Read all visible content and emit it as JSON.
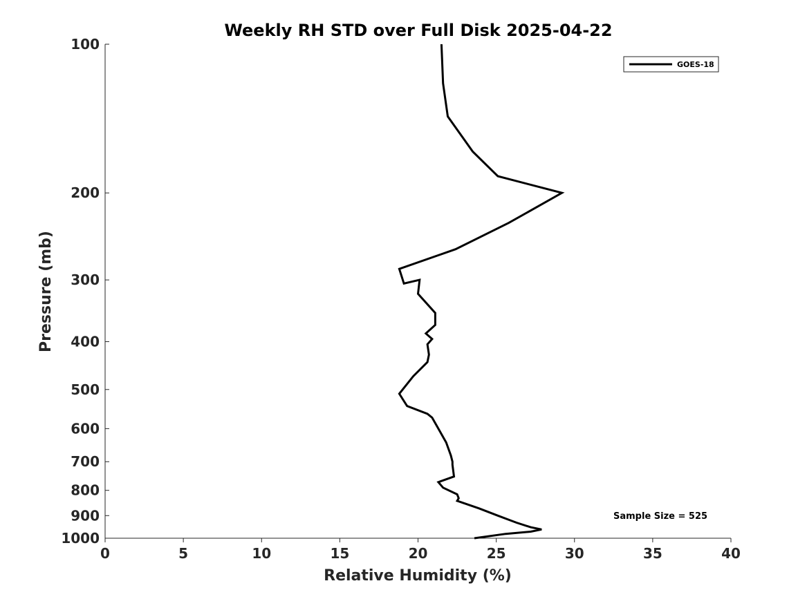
{
  "chart_data": {
    "type": "line",
    "title": "Weekly RH STD over Full Disk 2025-04-22",
    "xlabel": "Relative Humidity (%)",
    "ylabel": "Pressure (mb)",
    "xlim": [
      0,
      40
    ],
    "ylim": [
      100,
      1000
    ],
    "yscale": "log",
    "y_reversed": true,
    "grid": false,
    "xticks": [
      0,
      5,
      10,
      15,
      20,
      25,
      30,
      35,
      40
    ],
    "xtick_labels": [
      "0",
      "5",
      "10",
      "15",
      "20",
      "25",
      "30",
      "35",
      "40"
    ],
    "yticks": [
      100,
      200,
      300,
      400,
      500,
      600,
      700,
      800,
      900,
      1000
    ],
    "ytick_labels": [
      "100",
      "200",
      "300",
      "400",
      "500",
      "600",
      "700",
      "800",
      "900",
      "1000"
    ],
    "legend_position": "top-right",
    "series": [
      {
        "name": "GOES-18",
        "color": "#000000",
        "x": [
          21.5,
          21.6,
          21.9,
          23.5,
          25.1,
          29.2,
          25.8,
          22.4,
          18.8,
          19.1,
          20.1,
          20.0,
          21.1,
          21.1,
          20.5,
          20.9,
          20.6,
          20.7,
          20.6,
          19.7,
          18.8,
          19.3,
          20.6,
          20.9,
          21.3,
          21.8,
          22.1,
          22.2,
          22.2,
          22.3,
          21.3,
          21.6,
          22.5,
          22.6,
          22.5,
          23.9,
          25.1,
          25.9,
          26.3,
          27.2,
          27.9,
          27.2,
          25.6,
          23.6
        ],
        "y": [
          100,
          120,
          140,
          165,
          185,
          200,
          230,
          260,
          285,
          305,
          300,
          320,
          350,
          370,
          385,
          395,
          405,
          425,
          440,
          470,
          510,
          540,
          560,
          570,
          600,
          640,
          680,
          700,
          710,
          750,
          770,
          790,
          815,
          830,
          840,
          870,
          900,
          920,
          930,
          950,
          960,
          970,
          980,
          1000
        ]
      }
    ],
    "annotations": [
      {
        "text": "Sample Size = 525",
        "position": "bottom-right"
      }
    ]
  }
}
